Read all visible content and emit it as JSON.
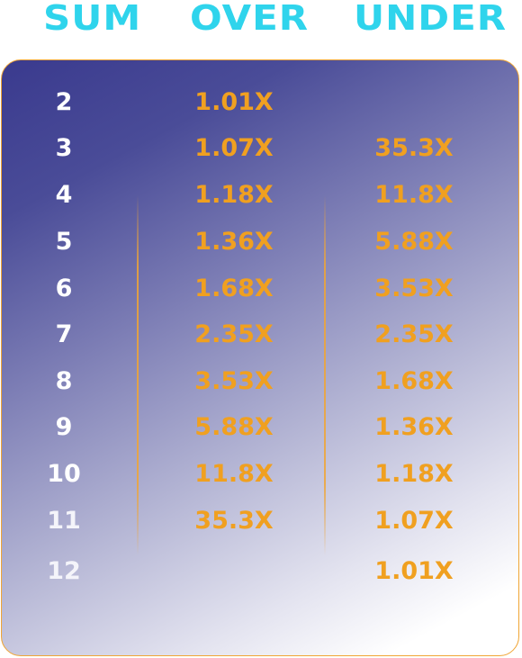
{
  "headers": {
    "sum": "SUM",
    "over": "OVER",
    "under": "UNDER"
  },
  "colors": {
    "header": "#2fd4ec",
    "odds": "#f0a020",
    "sum": "#ffffff",
    "panel_border": "#f0a534",
    "panel_top": "#3a3a8e",
    "panel_bottom": "#ffffff"
  },
  "rows": [
    {
      "sum": "2",
      "over": "1.01X",
      "under": ""
    },
    {
      "sum": "3",
      "over": "1.07X",
      "under": "35.3X"
    },
    {
      "sum": "4",
      "over": "1.18X",
      "under": "11.8X"
    },
    {
      "sum": "5",
      "over": "1.36X",
      "under": "5.88X"
    },
    {
      "sum": "6",
      "over": "1.68X",
      "under": "3.53X"
    },
    {
      "sum": "7",
      "over": "2.35X",
      "under": "2.35X"
    },
    {
      "sum": "8",
      "over": "3.53X",
      "under": "1.68X"
    },
    {
      "sum": "9",
      "over": "5.88X",
      "under": "1.36X"
    },
    {
      "sum": "10",
      "over": "11.8X",
      "under": "1.18X"
    },
    {
      "sum": "11",
      "over": "35.3X",
      "under": "1.07X"
    },
    {
      "sum": "12",
      "over": "",
      "under": "1.01X"
    }
  ]
}
